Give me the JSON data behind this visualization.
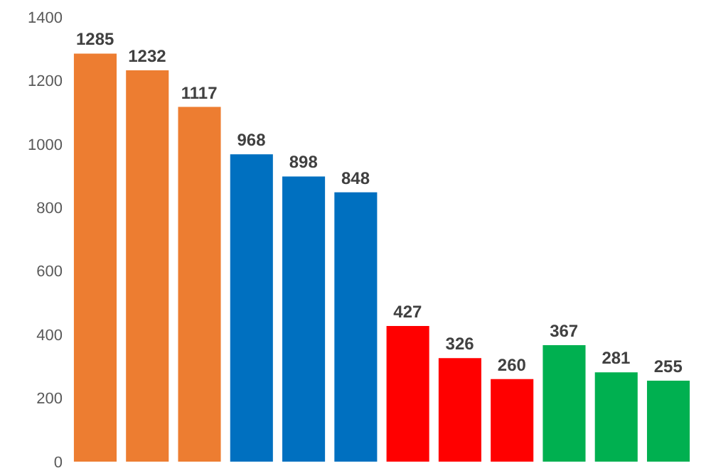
{
  "chart_data": {
    "type": "bar",
    "categories": [
      null,
      null,
      null,
      null,
      null,
      null,
      null,
      null,
      null,
      null,
      null,
      null
    ],
    "values": [
      1285,
      1232,
      1117,
      968,
      898,
      848,
      427,
      326,
      260,
      367,
      281,
      255
    ],
    "colors": [
      "#ed7d31",
      "#ed7d31",
      "#ed7d31",
      "#0070c0",
      "#0070c0",
      "#0070c0",
      "#ff0000",
      "#ff0000",
      "#ff0000",
      "#00b050",
      "#00b050",
      "#00b050"
    ],
    "ylim": [
      0,
      1400
    ],
    "yticks": [
      0,
      200,
      400,
      600,
      800,
      1000,
      1200,
      1400
    ],
    "data_labels": true
  }
}
